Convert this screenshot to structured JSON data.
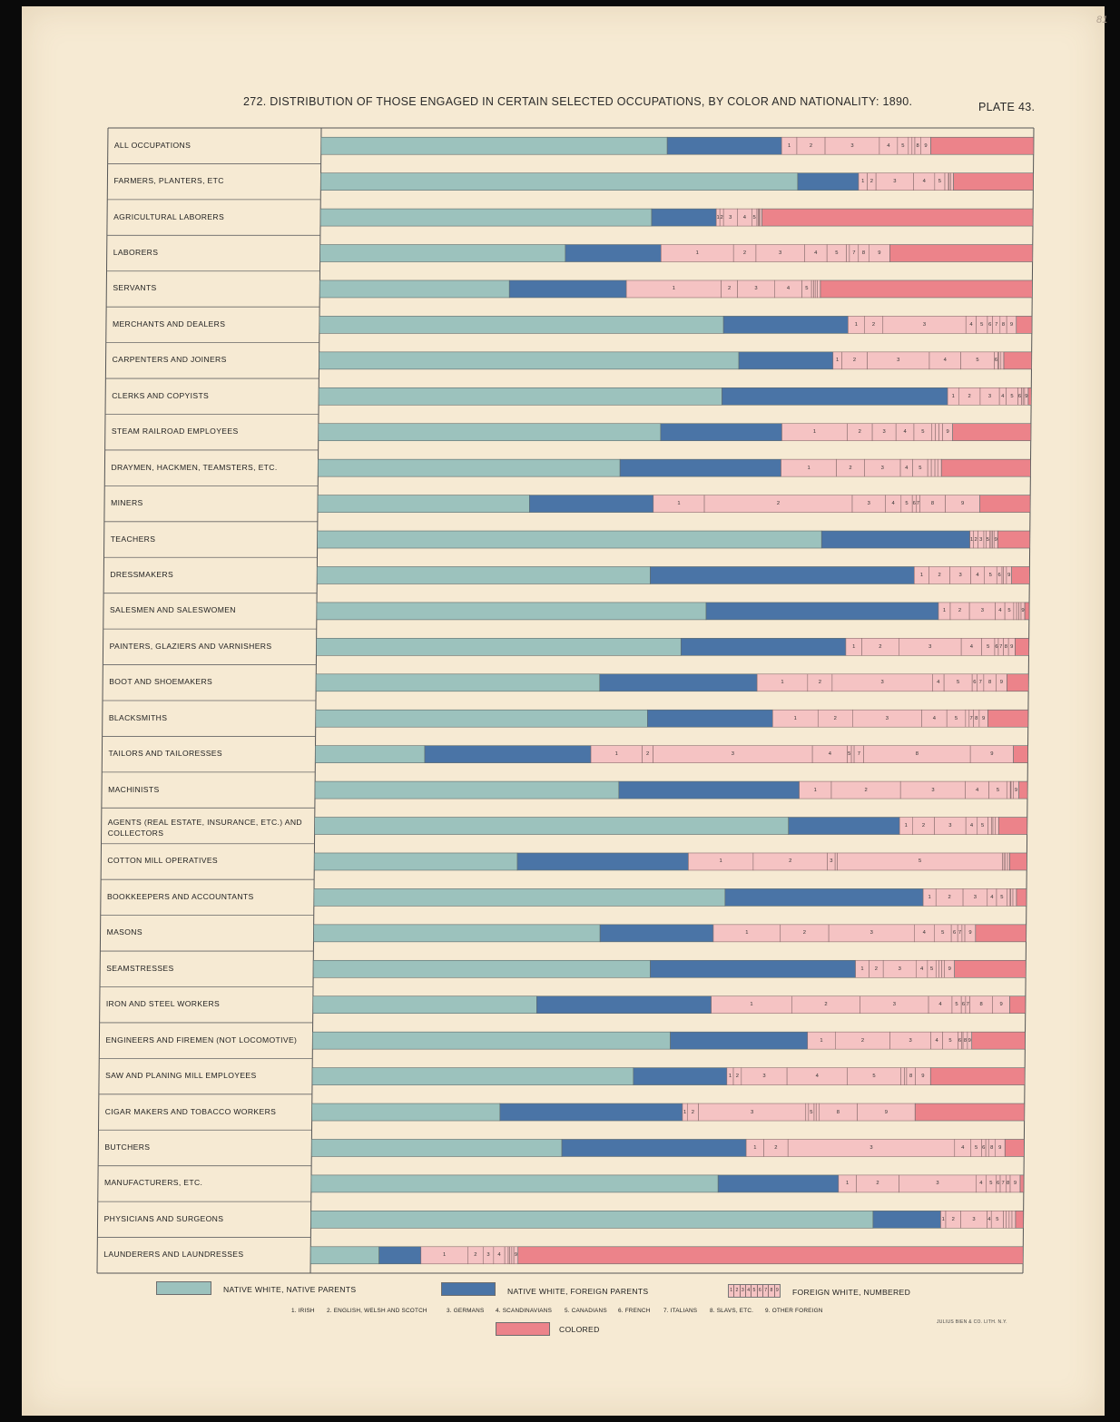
{
  "title": "272. DISTRIBUTION OF THOSE ENGAGED IN CERTAIN SELECTED OCCUPATIONS, BY COLOR AND NATIONALITY: 1890.",
  "plate": "PLATE 43.",
  "corner_mark": "81",
  "legend": {
    "native_native": "NATIVE WHITE, NATIVE PARENTS",
    "native_foreign": "NATIVE WHITE, FOREIGN PARENTS",
    "foreign_numbered": "FOREIGN WHITE, NUMBERED",
    "colored": "COLORED",
    "box_digits": [
      "1",
      "2",
      "3",
      "4",
      "5",
      "6",
      "7",
      "8",
      "9"
    ],
    "nationalities": [
      "1. IRISH",
      "2. ENGLISH, WELSH AND SCOTCH",
      "3. GERMANS",
      "4. SCANDINAVIANS",
      "5. CANADIANS",
      "6. FRENCH",
      "7. ITALIANS",
      "8. SLAVS, ETC.",
      "9. OTHER FOREIGN"
    ]
  },
  "printer": "JULIUS BIEN & CO. LITH. N.Y.",
  "colors": {
    "native_native": "#9cc2bd",
    "native_foreign": "#4a74a6",
    "foreign": "#f5c3c3",
    "colored": "#ec838a",
    "paper": "#f6ead3"
  },
  "chart_data": {
    "type": "bar",
    "orientation": "horizontal-stacked-100",
    "units": "percent",
    "xlim": [
      0,
      100
    ],
    "segment_order": [
      "native_native",
      "native_foreign",
      "foreign_1",
      "foreign_2",
      "foreign_3",
      "foreign_4",
      "foreign_5",
      "foreign_6",
      "foreign_7",
      "foreign_8",
      "foreign_9",
      "colored"
    ],
    "categories": [
      {
        "label": "ALL OCCUPATIONS",
        "values": [
          47.8,
          15.8,
          2.1,
          3.9,
          7.5,
          2.5,
          1.5,
          0.5,
          0.4,
          0.8,
          1.4,
          14.2
        ]
      },
      {
        "label": "FARMERS, PLANTERS, ETC",
        "values": [
          65.8,
          8.4,
          1.2,
          1.2,
          5.2,
          2.9,
          1.4,
          0.5,
          0.1,
          0.2,
          0.4,
          11.0
        ]
      },
      {
        "label": "AGRICULTURAL LABORERS",
        "values": [
          45.6,
          8.9,
          0.5,
          0.5,
          1.9,
          2.0,
          0.7,
          0.2,
          0.1,
          0.1,
          0.3,
          37.3
        ]
      },
      {
        "label": "LABORERS",
        "values": [
          32.8,
          12.8,
          9.7,
          3.0,
          6.5,
          3.0,
          2.6,
          0.4,
          1.2,
          1.4,
          2.8,
          19.1
        ]
      },
      {
        "label": "SERVANTS",
        "values": [
          25.6,
          15.8,
          12.8,
          2.2,
          5.0,
          3.7,
          1.3,
          0.3,
          0.2,
          0.3,
          0.4,
          28.6
        ]
      },
      {
        "label": "MERCHANTS AND DEALERS",
        "values": [
          54.5,
          16.8,
          2.2,
          2.5,
          11.2,
          1.4,
          1.5,
          0.7,
          1.0,
          0.9,
          1.3,
          2.1
        ]
      },
      {
        "label": "CARPENTERS AND JOINERS",
        "values": [
          57.5,
          12.9,
          1.2,
          3.5,
          8.5,
          4.3,
          4.6,
          0.5,
          0.1,
          0.3,
          0.4,
          3.8
        ]
      },
      {
        "label": "CLERKS AND COPYISTS",
        "values": [
          54.5,
          30.5,
          1.5,
          2.9,
          2.6,
          0.9,
          1.6,
          0.5,
          0.2,
          0.2,
          0.5,
          0.4
        ]
      },
      {
        "label": "STEAM RAILROAD EMPLOYEES",
        "values": [
          47.7,
          16.9,
          9.1,
          3.5,
          3.3,
          2.5,
          2.5,
          0.5,
          0.5,
          0.5,
          1.4,
          10.9
        ]
      },
      {
        "label": "DRAYMEN, HACKMEN, TEAMSTERS, ETC.",
        "values": [
          42.0,
          22.4,
          7.7,
          3.9,
          5.0,
          1.7,
          2.1,
          0.5,
          0.5,
          0.4,
          0.5,
          12.4
        ]
      },
      {
        "label": "MINERS",
        "values": [
          28.2,
          16.5,
          6.8,
          19.7,
          4.4,
          2.1,
          1.5,
          0.5,
          0.5,
          3.4,
          4.6,
          6.7
        ]
      },
      {
        "label": "TEACHERS",
        "values": [
          69.0,
          20.3,
          0.5,
          0.6,
          0.8,
          0.3,
          0.5,
          0.2,
          0.2,
          0.2,
          0.5,
          4.4
        ]
      },
      {
        "label": "DRESSMAKERS",
        "values": [
          44.8,
          35.5,
          2.0,
          2.8,
          2.8,
          1.8,
          1.7,
          0.7,
          0.2,
          0.4,
          0.7,
          2.4
        ]
      },
      {
        "label": "SALESMEN AND SALESWOMEN",
        "values": [
          52.8,
          31.5,
          1.6,
          2.6,
          3.5,
          1.3,
          1.2,
          0.4,
          0.3,
          0.3,
          0.5,
          0.6
        ]
      },
      {
        "label": "PAINTERS, GLAZIERS AND VARNISHERS",
        "values": [
          50.2,
          22.7,
          2.2,
          5.1,
          8.6,
          2.8,
          1.8,
          0.5,
          0.7,
          0.7,
          0.9,
          1.9
        ]
      },
      {
        "label": "BOOT AND SHOEMAKERS",
        "values": [
          39.3,
          21.8,
          7.0,
          3.4,
          13.9,
          1.6,
          3.9,
          0.7,
          0.9,
          1.7,
          1.5,
          3.0
        ]
      },
      {
        "label": "BLACKSMITHS",
        "values": [
          46.1,
          17.4,
          6.3,
          4.8,
          9.6,
          3.5,
          2.6,
          0.5,
          0.6,
          0.8,
          1.2,
          5.6
        ]
      },
      {
        "label": "TAILORS AND TAILORESSES",
        "values": [
          16.0,
          24.3,
          7.5,
          1.6,
          23.3,
          5.1,
          0.6,
          0.4,
          1.4,
          15.6,
          6.3,
          2.1
        ]
      },
      {
        "label": "MACHINISTS",
        "values": [
          42.6,
          25.3,
          4.5,
          9.7,
          9.1,
          3.3,
          2.5,
          0.5,
          0.1,
          0.3,
          0.8,
          1.2
        ]
      },
      {
        "label": "AGENTS (REAL ESTATE, INSURANCE, ETC.) AND COLLECTORS",
        "values": [
          66.5,
          15.6,
          1.8,
          3.1,
          4.4,
          1.6,
          1.5,
          0.5,
          0.2,
          0.3,
          0.5,
          4.0
        ]
      },
      {
        "label": "COTTON MILL OPERATIVES",
        "values": [
          28.5,
          24.0,
          9.1,
          10.4,
          1.1,
          0.3,
          23.2,
          0.2,
          0.2,
          0.3,
          0.3,
          2.4
        ]
      },
      {
        "label": "BOOKKEEPERS AND ACCOUNTANTS",
        "values": [
          57.7,
          27.8,
          1.8,
          3.8,
          3.4,
          1.3,
          1.5,
          0.4,
          0.1,
          0.3,
          0.5,
          1.4
        ]
      },
      {
        "label": "MASONS",
        "values": [
          40.2,
          15.9,
          9.4,
          6.8,
          12.0,
          2.8,
          2.4,
          0.9,
          0.6,
          0.4,
          1.5,
          7.1
        ]
      },
      {
        "label": "SEAMSTRESSES",
        "values": [
          47.3,
          28.8,
          1.9,
          2.0,
          4.6,
          1.6,
          1.2,
          0.4,
          0.4,
          0.4,
          1.4,
          10.0
        ]
      },
      {
        "label": "IRON AND STEEL WORKERS",
        "values": [
          31.4,
          24.5,
          11.3,
          9.6,
          9.6,
          3.3,
          1.3,
          0.6,
          0.6,
          3.2,
          2.4,
          2.2
        ]
      },
      {
        "label": "ENGINEERS AND FIREMEN (NOT LOCOMOTIVE)",
        "values": [
          49.0,
          18.8,
          3.8,
          7.5,
          5.6,
          1.6,
          2.1,
          0.5,
          0.2,
          0.6,
          0.6,
          7.3
        ]
      },
      {
        "label": "SAW AND PLANING MILL EMPLOYEES",
        "values": [
          44.3,
          12.9,
          0.9,
          1.1,
          6.3,
          8.3,
          7.4,
          0.5,
          0.3,
          1.2,
          2.1,
          13.0
        ]
      },
      {
        "label": "CIGAR MAKERS AND TOBACCO WORKERS",
        "values": [
          27.0,
          26.2,
          0.7,
          1.6,
          15.4,
          0.4,
          0.8,
          0.3,
          0.4,
          5.5,
          8.3,
          15.7
        ]
      },
      {
        "label": "BUTCHERS",
        "values": [
          35.3,
          26.0,
          2.5,
          3.4,
          23.5,
          2.3,
          1.5,
          0.6,
          0.4,
          0.9,
          1.4,
          2.7
        ]
      },
      {
        "label": "MANUFACTURERS, ETC.",
        "values": [
          57.1,
          16.9,
          2.5,
          6.0,
          10.8,
          1.4,
          1.4,
          0.6,
          0.8,
          0.6,
          1.4,
          0.5
        ]
      },
      {
        "label": "PHYSICIANS AND SURGEONS",
        "values": [
          78.9,
          9.5,
          0.7,
          2.1,
          3.7,
          0.6,
          1.7,
          0.4,
          0.4,
          0.4,
          0.5,
          1.1
        ]
      },
      {
        "label": "LAUNDERERS AND LAUNDRESSES",
        "values": [
          9.8,
          6.0,
          6.7,
          2.2,
          1.5,
          1.6,
          0.5,
          0.2,
          0.3,
          0.3,
          0.6,
          72.3
        ]
      }
    ]
  }
}
